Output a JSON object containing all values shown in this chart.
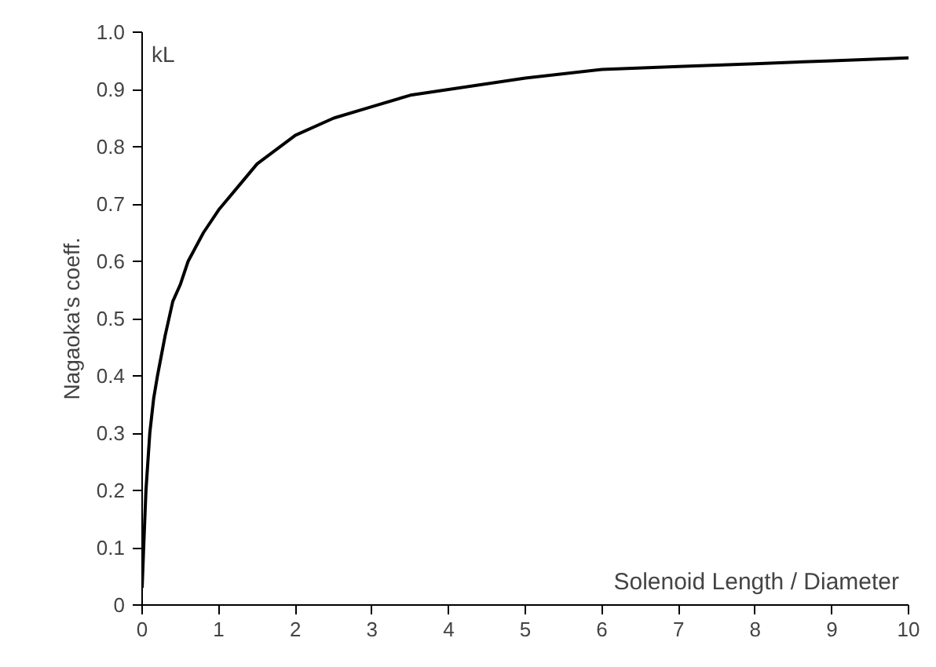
{
  "chart_data": {
    "type": "line",
    "xlabel": "Solenoid Length / Diameter",
    "ylabel": "Nagaoka's coeff.",
    "annotations": [
      "kL"
    ],
    "x": [
      0,
      0.02,
      0.05,
      0.1,
      0.15,
      0.2,
      0.3,
      0.4,
      0.5,
      0.6,
      0.8,
      1,
      1.25,
      1.5,
      2,
      2.5,
      3,
      3.5,
      4,
      5,
      6,
      7,
      8,
      9,
      10
    ],
    "series": [
      {
        "color": "#000000",
        "values": [
          0.03,
          0.1,
          0.2,
          0.3,
          0.36,
          0.4,
          0.47,
          0.53,
          0.56,
          0.6,
          0.65,
          0.69,
          0.73,
          0.77,
          0.82,
          0.85,
          0.87,
          0.89,
          0.9,
          0.92,
          0.935,
          0.94,
          0.945,
          0.95,
          0.955
        ]
      }
    ],
    "xlim": [
      0,
      10
    ],
    "ylim": [
      0,
      1
    ],
    "xticks": [
      0,
      1,
      2,
      3,
      4,
      5,
      6,
      7,
      8,
      9,
      10
    ],
    "yticks": [
      0,
      0.1,
      0.2,
      0.3,
      0.4,
      0.5,
      0.6,
      0.7,
      0.8,
      0.9,
      {
        "value": 1,
        "label": "1.0"
      }
    ],
    "grid": false,
    "marker": "none",
    "line_style": "solid"
  }
}
